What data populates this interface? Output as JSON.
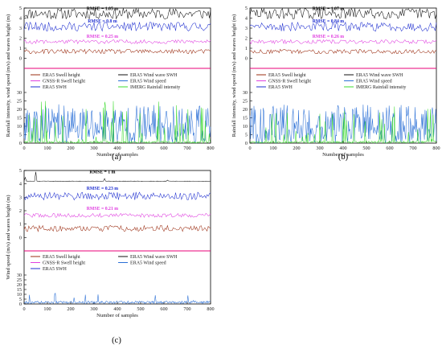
{
  "colors": {
    "ERA5 Swell height": "#f08a2c",
    "ERA5 Wind wave SWH": "#111111",
    "GNSS-R Swell height": "#e040e0",
    "ERA5 Wind speed": "#2a6fd6",
    "ERA5 SWH": "#1f2fd0",
    "IMERG Rainfall intensity": "#3ddc2f",
    "swell_trace": "#9b2d12",
    "threshold_line": "#e8007a"
  },
  "chart_data": [
    {
      "type": "line",
      "panel": "(a)",
      "caption": "(a)",
      "xlabel": "Number of samples",
      "upper_ylabel": "Wind speed (m/s) and waves height (m)",
      "lower_ylabel": "Rainfall intensity, wind speed (m/s) and waves height (m)",
      "xlim": [
        0,
        800
      ],
      "xticks": [
        "0",
        "100",
        "200",
        "300",
        "400",
        "500",
        "600",
        "700",
        "800"
      ],
      "upper_ylim": [
        -1,
        5
      ],
      "upper_yticks": [
        "0",
        "1",
        "2",
        "3",
        "4",
        "5"
      ],
      "lower_ylim": [
        0,
        30
      ],
      "lower_yticks": [
        "0",
        "5",
        "10",
        "15",
        "20",
        "25",
        "30"
      ],
      "rmse_labels": [
        "RMSE = 1.05 m",
        "RMSE = 0.8 m",
        "RMSE = 0.25 m"
      ],
      "legend": [
        "ERA5 Swell height",
        "ERA5 Wind wave SWH",
        "GNSS-R Swell height",
        "ERA5 Wind speed",
        "ERA5 SWH",
        "IMERG Rainfall intensity"
      ],
      "series": [
        {
          "name": "ERA5 Wind wave SWH",
          "mean": 4.45,
          "range": [
            3.9,
            5.0
          ]
        },
        {
          "name": "ERA5 SWH",
          "mean": 3.05,
          "range": [
            2.7,
            3.6
          ]
        },
        {
          "name": "GNSS-R Swell height",
          "mean": 1.65,
          "range": [
            1.45,
            1.85
          ]
        },
        {
          "name": "ERA5 Swell height",
          "mean": 0.65,
          "range": [
            0.45,
            0.9
          ]
        },
        {
          "name": "ERA5 Wind speed",
          "mean": 7,
          "range": [
            0,
            23
          ]
        },
        {
          "name": "IMERG Rainfall intensity",
          "mean": 1.5,
          "range": [
            0,
            25
          ]
        }
      ]
    },
    {
      "type": "line",
      "panel": "(b)",
      "caption": "(b)",
      "xlabel": "Number of samples",
      "upper_ylabel": "Wind speed (m/s) and waves height (m)",
      "lower_ylabel": "Rainfall intensity, wind speed (m/s) and waves height (m)",
      "xlim": [
        0,
        800
      ],
      "xticks": [
        "0",
        "100",
        "200",
        "300",
        "400",
        "500",
        "600",
        "700",
        "800"
      ],
      "upper_ylim": [
        -1,
        5
      ],
      "upper_yticks": [
        "0",
        "1",
        "2",
        "3",
        "4",
        "5"
      ],
      "lower_ylim": [
        0,
        30
      ],
      "lower_yticks": [
        "0",
        "5",
        "10",
        "15",
        "20",
        "25",
        "30"
      ],
      "rmse_labels": [
        "RMSE = 1.07 m",
        "RMSE = 0.84 m",
        "RMSE = 0.26 m"
      ],
      "legend": [
        "ERA5 Swell height",
        "ERA5 Wind wave SWH",
        "GNSS-R Swell height",
        "ERA5 Wind speed",
        "ERA5 SWH",
        "IMERG Rainfall intensity"
      ],
      "series": [
        {
          "name": "ERA5 Wind wave SWH",
          "mean": 4.45,
          "range": [
            3.9,
            5.0
          ]
        },
        {
          "name": "ERA5 SWH",
          "mean": 3.05,
          "range": [
            2.7,
            3.6
          ]
        },
        {
          "name": "GNSS-R Swell height",
          "mean": 1.65,
          "range": [
            1.45,
            1.85
          ]
        },
        {
          "name": "ERA5 Swell height",
          "mean": 0.65,
          "range": [
            0.45,
            0.9
          ]
        },
        {
          "name": "ERA5 Wind speed",
          "mean": 8,
          "range": [
            0,
            23
          ]
        },
        {
          "name": "IMERG Rainfall intensity",
          "mean": 1.5,
          "range": [
            0,
            22
          ]
        }
      ]
    },
    {
      "type": "line",
      "panel": "(c)",
      "caption": "(c)",
      "xlabel": "Number of samples",
      "upper_ylabel": "Wind speed (m/s) and waves height (m)",
      "lower_ylabel": "",
      "xlim": [
        0,
        800
      ],
      "xticks": [
        "0",
        "100",
        "200",
        "300",
        "400",
        "500",
        "600",
        "700",
        "800"
      ],
      "upper_ylim": [
        -1,
        5
      ],
      "upper_yticks": [
        "0",
        "1",
        "2",
        "3",
        "4",
        "5"
      ],
      "lower_ylim": [
        0,
        30
      ],
      "lower_yticks": [
        "0",
        "5",
        "10",
        "15",
        "20",
        "25",
        "30"
      ],
      "rmse_labels": [
        "RMSE = 1 m",
        "RMSE = 0.23 m",
        "RMSE = 0.21 m"
      ],
      "legend": [
        "ERA5 Swell height",
        "ERA5 Wind wave SWH",
        "GNSS-R Swell height",
        "ERA5 Wind speed",
        "ERA5 SWH"
      ],
      "series": [
        {
          "name": "ERA5 Wind wave SWH",
          "mean": 4.2,
          "range": [
            4.1,
            4.9
          ]
        },
        {
          "name": "ERA5 SWH",
          "mean": 3.0,
          "range": [
            2.8,
            3.4
          ]
        },
        {
          "name": "GNSS-R Swell height",
          "mean": 1.65,
          "range": [
            1.5,
            1.8
          ]
        },
        {
          "name": "ERA5 Swell height",
          "mean": 0.6,
          "range": [
            0.45,
            0.9
          ]
        },
        {
          "name": "ERA5 Wind speed",
          "mean": 3,
          "range": [
            0.5,
            13
          ]
        }
      ]
    }
  ]
}
